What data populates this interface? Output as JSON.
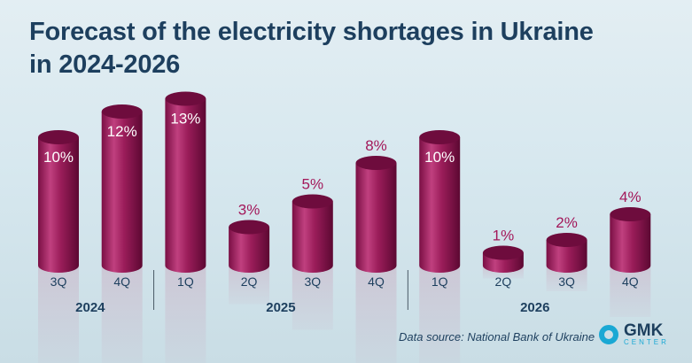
{
  "chart_data": {
    "type": "bar",
    "title": "Forecast of the electricity shortages in Ukraine in 2024-2026",
    "title_line1": "Forecast of the electricity shortages in Ukraine",
    "title_line2": "in 2024-2026",
    "categories": [
      "3Q",
      "4Q",
      "1Q",
      "2Q",
      "3Q",
      "4Q",
      "1Q",
      "2Q",
      "3Q",
      "4Q"
    ],
    "years": [
      {
        "label": "2024",
        "span": [
          0,
          1
        ]
      },
      {
        "label": "2025",
        "span": [
          2,
          5
        ]
      },
      {
        "label": "2026",
        "span": [
          6,
          9
        ]
      }
    ],
    "values": [
      10,
      12,
      13,
      3,
      5,
      8,
      10,
      1,
      2,
      4
    ],
    "unit": "%",
    "ylim": [
      0,
      13
    ],
    "bar_color": "#9b1d5a",
    "label_color": "#a3185a"
  },
  "source": "Data source: National Bank of Ukraine",
  "logo": {
    "name": "GMK",
    "sub": "CENTER"
  }
}
